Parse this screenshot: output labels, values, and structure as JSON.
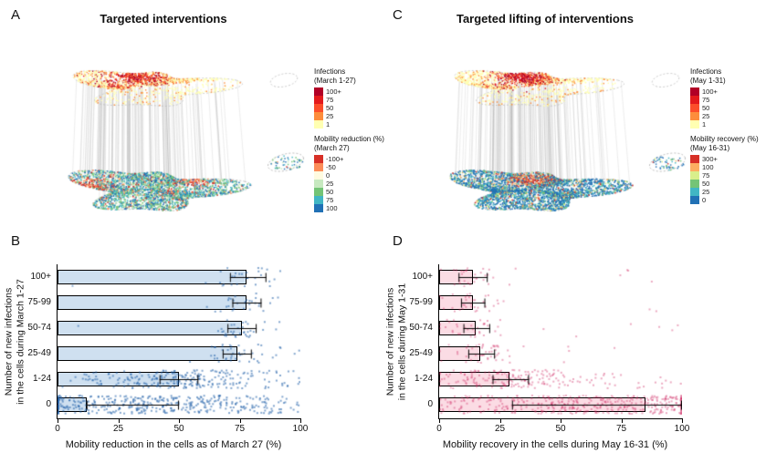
{
  "panels": {
    "a": {
      "label": "A",
      "title": "Targeted interventions",
      "legends": [
        {
          "title_lines": [
            "Infections",
            "(March 1-27)"
          ],
          "entries": [
            {
              "label": "100+",
              "color": "#b10026"
            },
            {
              "label": "75",
              "color": "#e31a1c"
            },
            {
              "label": "50",
              "color": "#fc4e2a"
            },
            {
              "label": "25",
              "color": "#fd8d3c"
            },
            {
              "label": "1",
              "color": "#ffffb2"
            }
          ]
        },
        {
          "title_lines": [
            "Mobility reduction (%)",
            "(March 27)"
          ],
          "entries": [
            {
              "label": "-100+",
              "color": "#d73027"
            },
            {
              "label": "-50",
              "color": "#fc8d59"
            },
            {
              "label": "0",
              "color": "#fffbe0"
            },
            {
              "label": "25",
              "color": "#c7e9c0"
            },
            {
              "label": "50",
              "color": "#74c476"
            },
            {
              "label": "75",
              "color": "#41b6c4"
            },
            {
              "label": "100",
              "color": "#2171b5"
            }
          ]
        }
      ]
    },
    "b": {
      "label": "B"
    },
    "c": {
      "label": "C",
      "title": "Targeted lifting of interventions",
      "legends": [
        {
          "title_lines": [
            "Infections",
            "(May 1-31)"
          ],
          "entries": [
            {
              "label": "100+",
              "color": "#b10026"
            },
            {
              "label": "75",
              "color": "#e31a1c"
            },
            {
              "label": "50",
              "color": "#fc4e2a"
            },
            {
              "label": "25",
              "color": "#fd8d3c"
            },
            {
              "label": "1",
              "color": "#ffffb2"
            }
          ]
        },
        {
          "title_lines": [
            "Mobility recovery (%)",
            "(May 16-31)"
          ],
          "entries": [
            {
              "label": "300+",
              "color": "#d73027"
            },
            {
              "label": "100",
              "color": "#fdae61"
            },
            {
              "label": "75",
              "color": "#d9ef8b"
            },
            {
              "label": "50",
              "color": "#74c476"
            },
            {
              "label": "25",
              "color": "#41b6c4"
            },
            {
              "label": "0",
              "color": "#2171b5"
            }
          ]
        }
      ]
    },
    "d": {
      "label": "D"
    }
  },
  "chart_data": [
    {
      "id": "panel-b",
      "type": "bar",
      "orientation": "horizontal",
      "categories": [
        "100+",
        "75-99",
        "50-74",
        "25-49",
        "1-24",
        "0"
      ],
      "values": [
        78,
        78,
        76,
        74,
        50,
        12
      ],
      "error_bars": [
        [
          71,
          86
        ],
        [
          72,
          84
        ],
        [
          70,
          82
        ],
        [
          68,
          80
        ],
        [
          42,
          58
        ],
        [
          12,
          50
        ]
      ],
      "xlabel": "Mobility reduction in the cells as of March 27 (%)",
      "ylabel_line1": "Number of new infections",
      "ylabel_line2": "in the cells during March 1-27",
      "xlim": [
        0,
        100
      ],
      "xticks": [
        "0",
        "25",
        "50",
        "75",
        "100"
      ],
      "grid": false,
      "bar_fill": "#cfe0f0",
      "bar_border": "#000000",
      "point_color": "#1f5fa8",
      "point_alpha": 0.55,
      "scatter": {
        "counts": [
          30,
          30,
          35,
          45,
          260,
          420
        ],
        "centers": [
          79,
          78,
          76,
          74,
          52,
          30
        ],
        "spreads": [
          7,
          7,
          8,
          9,
          18,
          28
        ],
        "uniform_frac": [
          0.1,
          0.1,
          0.1,
          0.15,
          0.25,
          0.45
        ]
      }
    },
    {
      "id": "panel-d",
      "type": "bar",
      "orientation": "horizontal",
      "categories": [
        "100+",
        "75-99",
        "50-74",
        "25-49",
        "1-24",
        "0"
      ],
      "values": [
        14,
        14,
        15,
        17,
        29,
        85
      ],
      "error_bars": [
        [
          8,
          20
        ],
        [
          9,
          19
        ],
        [
          10,
          21
        ],
        [
          12,
          23
        ],
        [
          22,
          37
        ],
        [
          30,
          100
        ]
      ],
      "xlabel": "Mobility recovery in the cells during May 16-31 (%)",
      "ylabel_line1": "Number of new infections",
      "ylabel_line2": "in the cells during May 1-31",
      "xlim": [
        0,
        100
      ],
      "xticks": [
        "0",
        "25",
        "50",
        "75",
        "100"
      ],
      "grid": false,
      "bar_fill": "#fbdce4",
      "bar_border": "#000000",
      "point_color": "#cf2b63",
      "point_alpha": 0.4,
      "scatter": {
        "counts": [
          35,
          35,
          40,
          50,
          200,
          430
        ],
        "centers": [
          13,
          13,
          14,
          17,
          28,
          75
        ],
        "spreads": [
          6,
          6,
          7,
          8,
          14,
          25
        ],
        "uniform_frac": [
          0.15,
          0.15,
          0.15,
          0.2,
          0.3,
          0.5
        ]
      }
    }
  ]
}
